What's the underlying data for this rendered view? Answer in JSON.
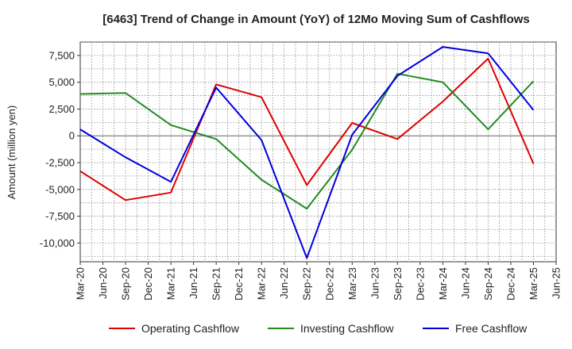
{
  "chart_data": {
    "type": "line",
    "title": "[6463]  Trend of Change in Amount (YoY) of 12Mo Moving Sum of Cashflows",
    "ylabel": "Amount (million yen)",
    "xlabel": "",
    "ylim": [
      -11750,
      8750
    ],
    "yticks": [
      7500,
      5000,
      2500,
      0,
      -2500,
      -5000,
      -7500,
      -10000
    ],
    "ytick_labels": [
      "7,500",
      "5,000",
      "2,500",
      "0",
      "-2,500",
      "-5,000",
      "-7,500",
      "-10,000"
    ],
    "categories": [
      "Mar-20",
      "Jun-20",
      "Sep-20",
      "Dec-20",
      "Mar-21",
      "Jun-21",
      "Sep-21",
      "Dec-21",
      "Mar-22",
      "Jun-22",
      "Sep-22",
      "Dec-22",
      "Mar-23",
      "Jun-23",
      "Sep-23",
      "Dec-23",
      "Mar-24",
      "Jun-24",
      "Sep-24",
      "Dec-24",
      "Mar-25",
      "Jun-25"
    ],
    "series": [
      {
        "name": "Operating Cashflow",
        "color": "#e00000",
        "values": [
          -3300,
          null,
          -6000,
          null,
          -5300,
          null,
          4800,
          null,
          3600,
          null,
          -4600,
          null,
          1200,
          null,
          -300,
          null,
          3200,
          null,
          7200,
          null,
          -2600,
          null
        ]
      },
      {
        "name": "Investing Cashflow",
        "color": "#228b22",
        "values": [
          3900,
          null,
          4000,
          null,
          1000,
          null,
          -300,
          null,
          -4100,
          null,
          -6800,
          null,
          -1300,
          null,
          5800,
          null,
          5000,
          null,
          600,
          null,
          5100,
          null
        ]
      },
      {
        "name": "Free Cashflow",
        "color": "#0000dd",
        "values": [
          600,
          null,
          -2000,
          null,
          -4300,
          null,
          4500,
          null,
          -400,
          null,
          -11400,
          null,
          100,
          null,
          5600,
          null,
          8300,
          null,
          7700,
          null,
          2400,
          null
        ]
      }
    ],
    "grid": true,
    "legend_position": "bottom"
  }
}
